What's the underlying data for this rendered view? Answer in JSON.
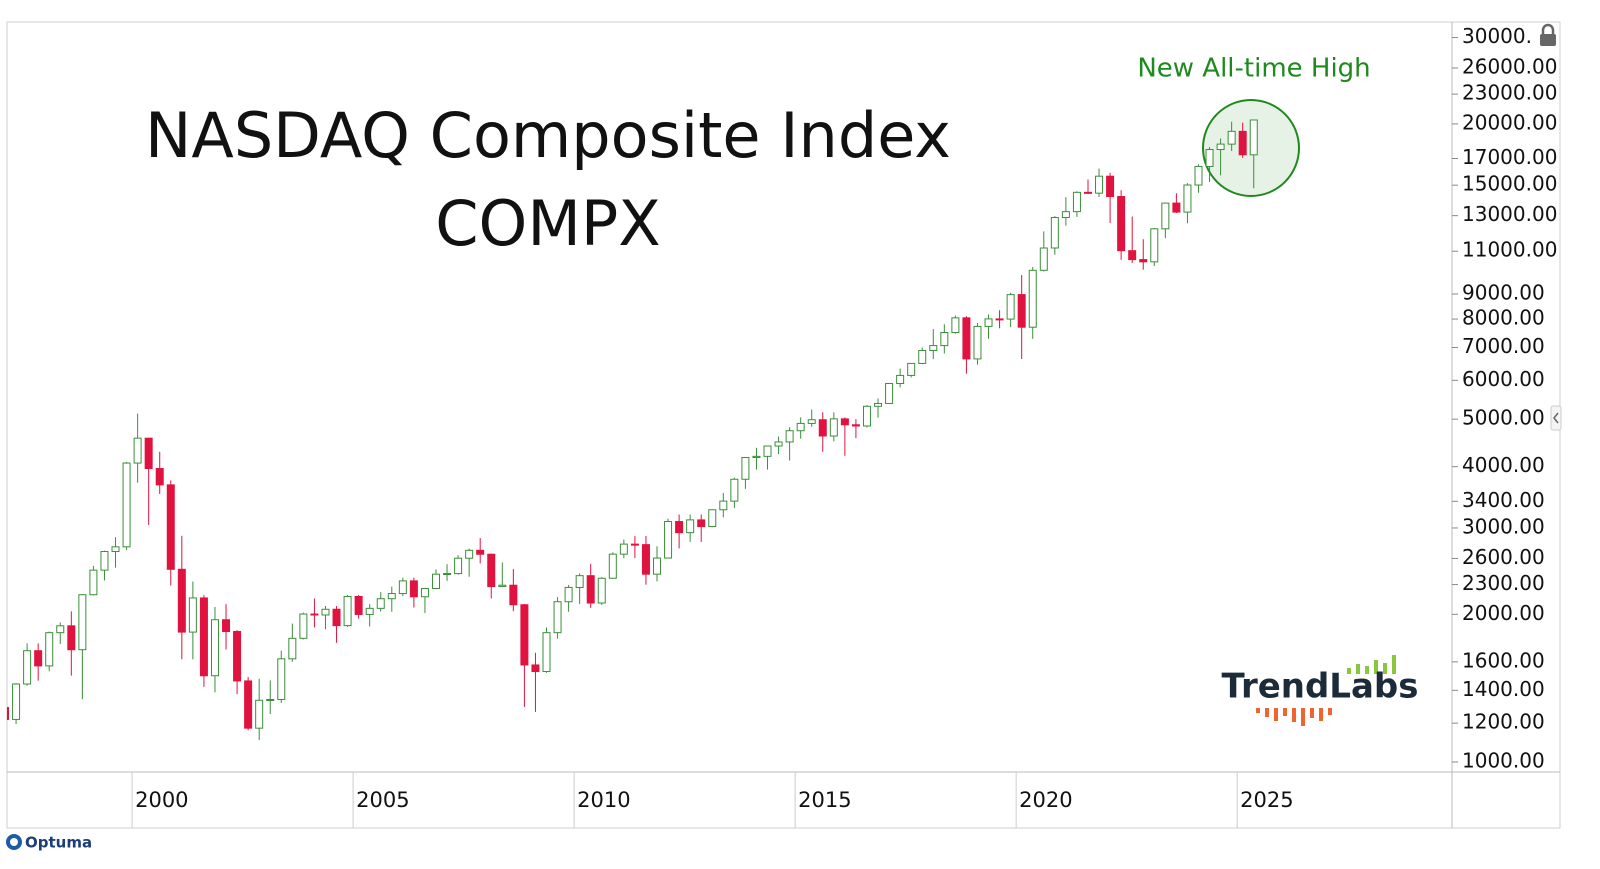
{
  "chart_data": {
    "type": "candlestick",
    "title": "NASDAQ Composite Index",
    "subtitle": "COMPX",
    "annotation": "New All-time High",
    "logo": "TrendLabs",
    "footer": "Optuma",
    "log_scale": true,
    "up_color": "#3a8f3a",
    "down_color": "#e0123f",
    "xlim": [
      1997.17,
      2029.86
    ],
    "xticks": [
      2000,
      2005,
      2010,
      2015,
      2020,
      2025
    ],
    "ylim": [
      954,
      32270
    ],
    "yticks": [
      {
        "value": 30000,
        "label": "30000."
      },
      {
        "value": 26000,
        "label": "26000.00"
      },
      {
        "value": 23000,
        "label": "23000.00"
      },
      {
        "value": 20000,
        "label": "20000.00"
      },
      {
        "value": 17000,
        "label": "17000.00"
      },
      {
        "value": 15000,
        "label": "15000.00"
      },
      {
        "value": 13000,
        "label": "13000.00"
      },
      {
        "value": 11000,
        "label": "11000.00"
      },
      {
        "value": 9000,
        "label": "9000.00"
      },
      {
        "value": 8000,
        "label": "8000.00"
      },
      {
        "value": 7000,
        "label": "7000.00"
      },
      {
        "value": 6000,
        "label": "6000.00"
      },
      {
        "value": 5000,
        "label": "5000.00"
      },
      {
        "value": 4000,
        "label": "4000.00"
      },
      {
        "value": 3400,
        "label": "3400.00"
      },
      {
        "value": 3000,
        "label": "3000.00"
      },
      {
        "value": 2600,
        "label": "2600.00"
      },
      {
        "value": 2300,
        "label": "2300.00"
      },
      {
        "value": 2000,
        "label": "2000.00"
      },
      {
        "value": 1600,
        "label": "1600.00"
      },
      {
        "value": 1400,
        "label": "1400.00"
      },
      {
        "value": 1200,
        "label": "1200.00"
      },
      {
        "value": 1000,
        "label": "1000.00"
      }
    ],
    "x": [
      1997.125,
      1997.375,
      1997.625,
      1997.875,
      1998.125,
      1998.375,
      1998.625,
      1998.875,
      1999.125,
      1999.375,
      1999.625,
      1999.875,
      2000.125,
      2000.375,
      2000.625,
      2000.875,
      2001.125,
      2001.375,
      2001.625,
      2001.875,
      2002.125,
      2002.375,
      2002.625,
      2002.875,
      2003.125,
      2003.375,
      2003.625,
      2003.875,
      2004.125,
      2004.375,
      2004.625,
      2004.875,
      2005.125,
      2005.375,
      2005.625,
      2005.875,
      2006.125,
      2006.375,
      2006.625,
      2006.875,
      2007.125,
      2007.375,
      2007.625,
      2007.875,
      2008.125,
      2008.375,
      2008.625,
      2008.875,
      2009.125,
      2009.375,
      2009.625,
      2009.875,
      2010.125,
      2010.375,
      2010.625,
      2010.875,
      2011.125,
      2011.375,
      2011.625,
      2011.875,
      2012.125,
      2012.375,
      2012.625,
      2012.875,
      2013.125,
      2013.375,
      2013.625,
      2013.875,
      2014.125,
      2014.375,
      2014.625,
      2014.875,
      2015.125,
      2015.375,
      2015.625,
      2015.875,
      2016.125,
      2016.375,
      2016.625,
      2016.875,
      2017.125,
      2017.375,
      2017.625,
      2017.875,
      2018.125,
      2018.375,
      2018.625,
      2018.875,
      2019.125,
      2019.375,
      2019.625,
      2019.875,
      2020.125,
      2020.375,
      2020.625,
      2020.875,
      2021.125,
      2021.375,
      2021.625,
      2021.875,
      2022.125,
      2022.375,
      2022.625,
      2022.875,
      2023.125,
      2023.375,
      2023.625,
      2023.875,
      2024.125,
      2024.375,
      2024.625,
      2024.875,
      2025.125,
      2025.375
    ],
    "open": [
      1291,
      1221,
      1442,
      1686,
      1570,
      1835,
      1895,
      1694,
      2193,
      2461,
      2686,
      2746,
      4069,
      4573,
      3966,
      3673,
      2471,
      1840,
      2160,
      1499,
      1950,
      1845,
      1463,
      1172,
      1336,
      1341,
      1623,
      1787,
      2003,
      1994,
      2048,
      1897,
      2175,
      1999,
      2057,
      2152,
      2205,
      2340,
      2172,
      2258,
      2415,
      2422,
      2603,
      2701,
      2652,
      2279,
      2293,
      2092,
      1577,
      1529,
      1835,
      2122,
      2269,
      2398,
      2109,
      2369,
      2653,
      2781,
      2774,
      2415,
      2605,
      3092,
      2935,
      3116,
      3020,
      3268,
      3403,
      3771,
      4177,
      4199,
      4408,
      4493,
      4736,
      4901,
      4987,
      4620,
      5007,
      4870,
      4843,
      5312,
      5383,
      5912,
      6140,
      6496,
      6903,
      7063,
      7510,
      8046,
      6635,
      7729,
      8006,
      7999,
      8973,
      7700,
      10058,
      11168,
      12888,
      13247,
      14504,
      14448,
      15645,
      14221,
      11029,
      10576,
      10466,
      12222,
      13788,
      13219,
      15011,
      16379,
      17733,
      18189,
      19311,
      17299
    ],
    "high": [
      1392,
      1448,
      1745,
      1745,
      1845,
      1925,
      2028,
      2200,
      2511,
      2697,
      2873,
      4090,
      5132,
      4580,
      4290,
      3750,
      2892,
      2333,
      2188,
      2070,
      2098,
      1857,
      1490,
      1478,
      1467,
      1686,
      1915,
      2016,
      2154,
      2080,
      2079,
      2191,
      2191,
      2098,
      2220,
      2278,
      2375,
      2375,
      2264,
      2470,
      2531,
      2640,
      2724,
      2861,
      2661,
      2551,
      2473,
      2100,
      1670,
      1881,
      2168,
      2296,
      2425,
      2535,
      2382,
      2676,
      2841,
      2888,
      2888,
      2754,
      3134,
      3196,
      3196,
      3196,
      3272,
      3536,
      3798,
      4182,
      4371,
      4416,
      4610,
      4814,
      5042,
      5232,
      5164,
      5163,
      5042,
      5000,
      5342,
      5512,
      5928,
      6341,
      6504,
      7003,
      7637,
      7806,
      8133,
      8109,
      7851,
      8176,
      8339,
      9052,
      9838,
      10221,
      12074,
      12973,
      14175,
      14572,
      15403,
      16212,
      15901,
      14646,
      12945,
      11640,
      12270,
      13826,
      14446,
      15150,
      16538,
      17937,
      18671,
      20205,
      20118,
      20420
    ],
    "low": [
      1201,
      1195,
      1431,
      1465,
      1531,
      1740,
      1500,
      1343,
      2185,
      2345,
      2490,
      2705,
      3711,
      3042,
      3520,
      2288,
      1620,
      1619,
      1423,
      1387,
      1696,
      1375,
      1160,
      1108,
      1253,
      1320,
      1601,
      1778,
      1881,
      1865,
      1750,
      1885,
      1960,
      1889,
      2025,
      2025,
      2180,
      2065,
      2012,
      2250,
      2340,
      2410,
      2386,
      2540,
      2155,
      2275,
      2030,
      1295,
      1265,
      1520,
      1784,
      2024,
      2100,
      2061,
      2091,
      2365,
      2603,
      2605,
      2298,
      2335,
      2599,
      2726,
      2811,
      2810,
      3011,
      3154,
      3294,
      3604,
      3946,
      3946,
      4245,
      4117,
      4563,
      4824,
      4292,
      4506,
      4210,
      4574,
      4810,
      5034,
      5371,
      5805,
      6081,
      6471,
      6630,
      6805,
      7469,
      6190,
      6457,
      7292,
      7662,
      7700,
      6631,
      7288,
      10003,
      10822,
      12397,
      12920,
      14400,
      14180,
      12555,
      10565,
      10407,
      10089,
      10265,
      11695,
      13161,
      12544,
      14478,
      15223,
      15708,
      17613,
      17045,
      14784
    ],
    "close": [
      1221,
      1442,
      1686,
      1570,
      1835,
      1895,
      1694,
      2193,
      2461,
      2686,
      2746,
      4069,
      4573,
      3966,
      3673,
      2471,
      1840,
      2160,
      1499,
      1950,
      1845,
      1463,
      1172,
      1336,
      1341,
      1623,
      1787,
      2003,
      1994,
      2048,
      1897,
      2175,
      1999,
      2057,
      2152,
      2205,
      2340,
      2172,
      2258,
      2415,
      2422,
      2603,
      2701,
      2652,
      2279,
      2293,
      2092,
      1577,
      1529,
      1835,
      2122,
      2269,
      2398,
      2109,
      2369,
      2653,
      2781,
      2774,
      2415,
      2605,
      3092,
      2935,
      3116,
      3020,
      3268,
      3403,
      3771,
      4177,
      4199,
      4408,
      4493,
      4736,
      4901,
      4987,
      4620,
      5007,
      4870,
      4843,
      5312,
      5383,
      5912,
      6140,
      6496,
      6903,
      7063,
      7510,
      8046,
      6635,
      7729,
      8006,
      7999,
      8973,
      7700,
      10058,
      11168,
      12888,
      13247,
      14504,
      14448,
      15645,
      14221,
      11029,
      10576,
      10466,
      12222,
      13788,
      13219,
      15011,
      16379,
      17733,
      18189,
      19311,
      17299,
      20370
    ]
  }
}
